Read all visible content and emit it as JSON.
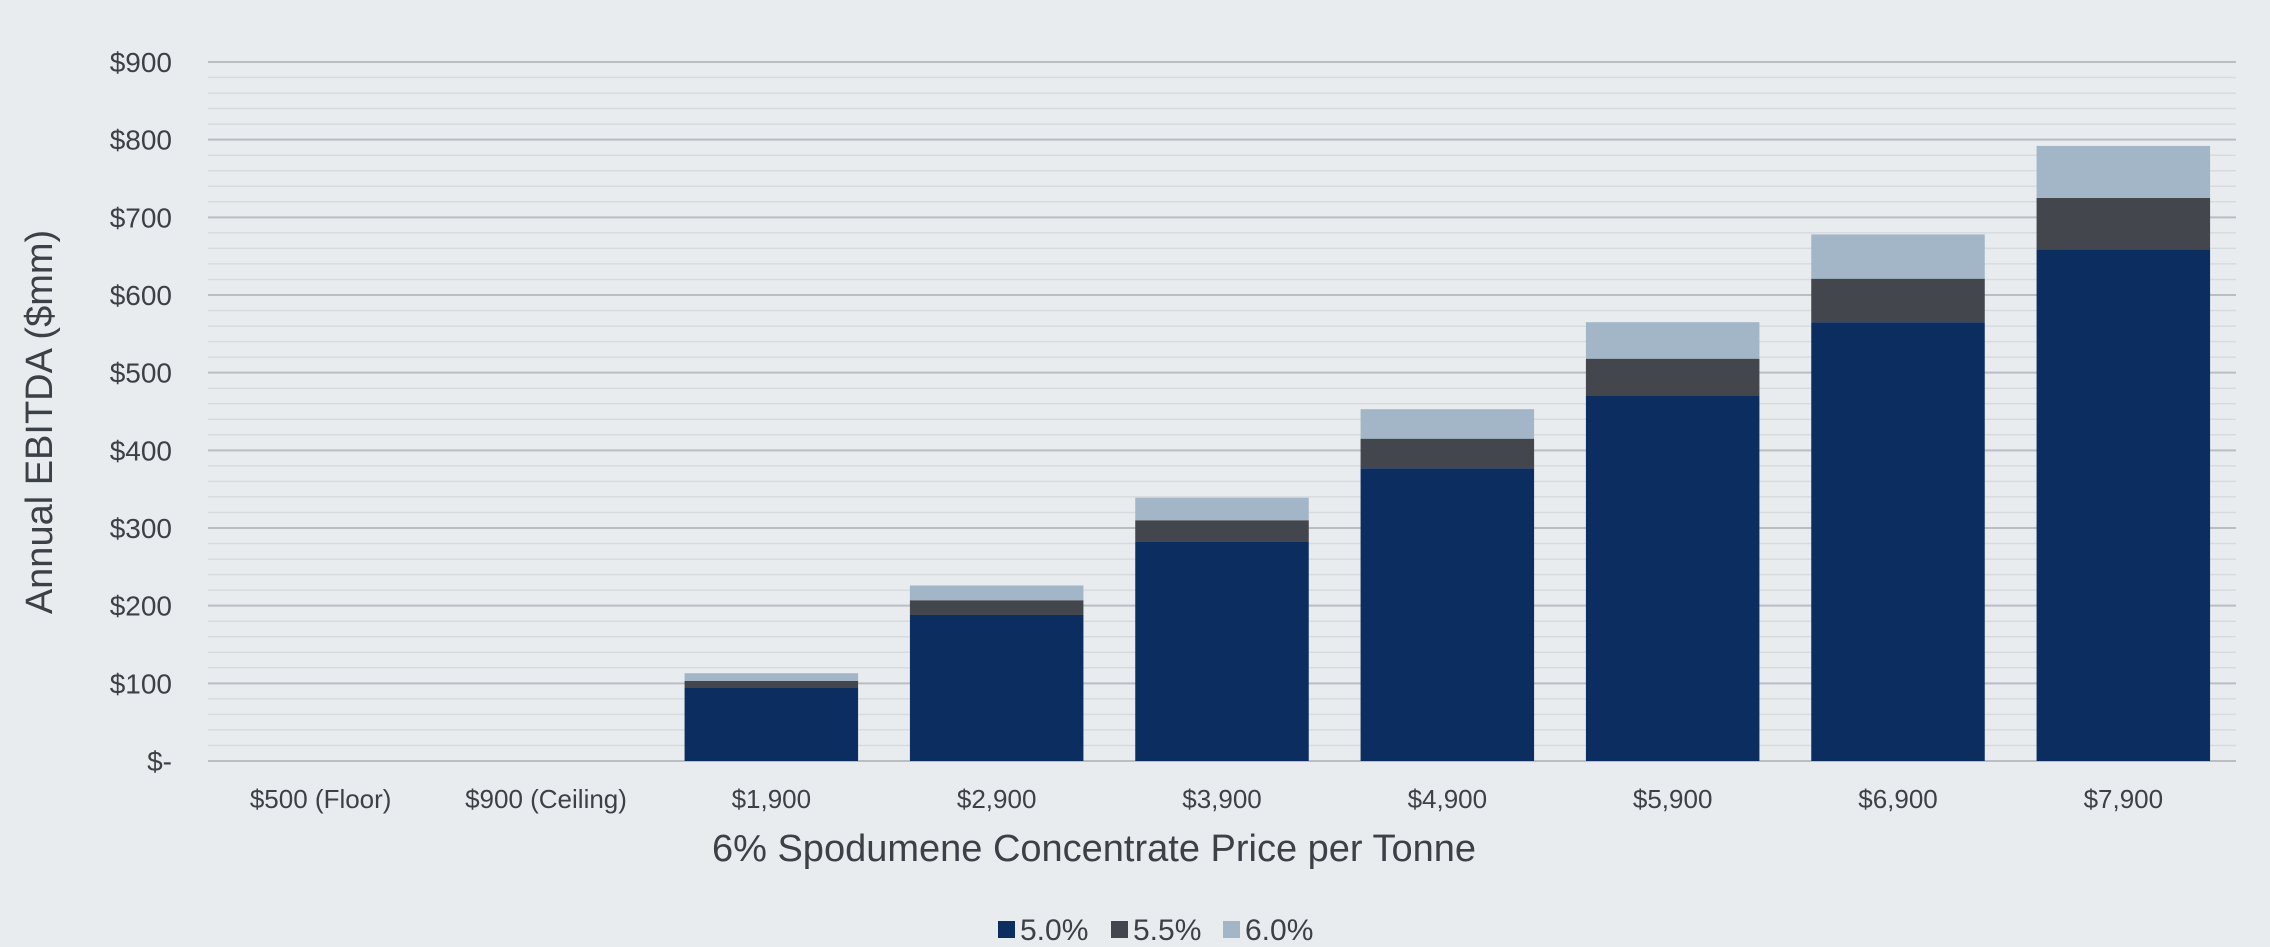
{
  "chart_data": {
    "type": "bar",
    "stacked": true,
    "title": "",
    "xlabel": "6% Spodumene Concentrate Price per Tonne",
    "ylabel": "Annual EBITDA ($mm)",
    "ylim": [
      0,
      900
    ],
    "grid": true,
    "legend_position": "bottom",
    "categories": [
      "$500 (Floor)",
      "$900 (Ceiling)",
      "$1,900",
      "$2,900",
      "$3,900",
      "$4,900",
      "$5,900",
      "$6,900",
      "$7,900"
    ],
    "y_tick_labels": [
      "$-",
      "$100",
      "$200",
      "$300",
      "$400",
      "$500",
      "$600",
      "$700",
      "$800",
      "$900"
    ],
    "y_tick_values": [
      0,
      100,
      200,
      300,
      400,
      500,
      600,
      700,
      800,
      900
    ],
    "series": [
      {
        "name": "5.0%",
        "color": "#0c2d5f",
        "values": [
          0,
          0,
          94,
          188,
          282,
          377,
          471,
          565,
          659
        ]
      },
      {
        "name": "5.5%",
        "color": "#43464d",
        "values": [
          0,
          0,
          9,
          19,
          28,
          38,
          47,
          56,
          66
        ]
      },
      {
        "name": "6.0%",
        "color": "#a2b6c7",
        "values": [
          0,
          0,
          10,
          19,
          29,
          38,
          47,
          57,
          67
        ]
      }
    ]
  }
}
